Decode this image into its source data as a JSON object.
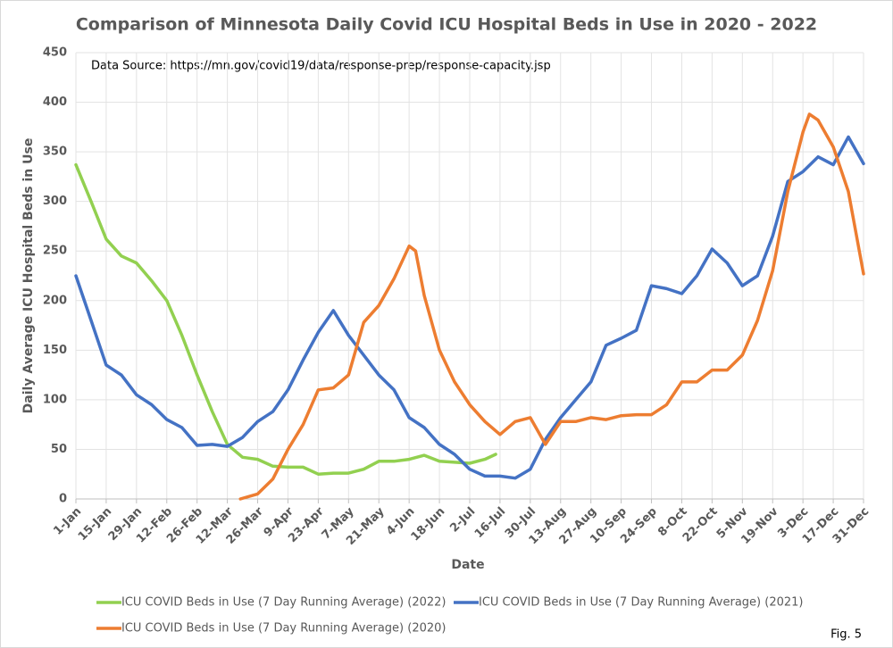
{
  "chart_data": {
    "type": "line",
    "title": "Comparison of Minnesota Daily Covid ICU Hospital Beds in Use in 2020 - 2022",
    "x_label": "Date",
    "y_label": "Daily Average ICU Hospital Beds in Use",
    "annotations": [
      "Data Source: https://mn.gov/covid19/data/response-prep/response-capacity.jsp",
      "Fig. 5"
    ],
    "xlim": [
      0,
      364
    ],
    "ylim": [
      0,
      450
    ],
    "grid": true,
    "yticks": [
      0,
      50,
      100,
      150,
      200,
      250,
      300,
      350,
      400,
      450
    ],
    "xticks": [
      {
        "value": 0,
        "label": "1-Jan"
      },
      {
        "value": 14,
        "label": "15-Jan"
      },
      {
        "value": 28,
        "label": "29-Jan"
      },
      {
        "value": 42,
        "label": "12-Feb"
      },
      {
        "value": 56,
        "label": "26-Feb"
      },
      {
        "value": 70,
        "label": "12-Mar"
      },
      {
        "value": 84,
        "label": "26-Mar"
      },
      {
        "value": 98,
        "label": "9-Apr"
      },
      {
        "value": 112,
        "label": "23-Apr"
      },
      {
        "value": 126,
        "label": "7-May"
      },
      {
        "value": 140,
        "label": "21-May"
      },
      {
        "value": 154,
        "label": "4-Jun"
      },
      {
        "value": 168,
        "label": "18-Jun"
      },
      {
        "value": 182,
        "label": "2-Jul"
      },
      {
        "value": 196,
        "label": "16-Jul"
      },
      {
        "value": 210,
        "label": "30-Jul"
      },
      {
        "value": 224,
        "label": "13-Aug"
      },
      {
        "value": 238,
        "label": "27-Aug"
      },
      {
        "value": 252,
        "label": "10-Sep"
      },
      {
        "value": 266,
        "label": "24-Sep"
      },
      {
        "value": 280,
        "label": "8-Oct"
      },
      {
        "value": 294,
        "label": "22-Oct"
      },
      {
        "value": 308,
        "label": "5-Nov"
      },
      {
        "value": 322,
        "label": "19-Nov"
      },
      {
        "value": 336,
        "label": "3-Dec"
      },
      {
        "value": 350,
        "label": "17-Dec"
      },
      {
        "value": 364,
        "label": "31-Dec"
      }
    ],
    "series": [
      {
        "name": "ICU COVID Beds in Use (7 Day Running Average) (2022)",
        "color": "#92d050",
        "x": [
          0,
          7,
          14,
          21,
          28,
          35,
          42,
          49,
          56,
          63,
          70,
          77,
          84,
          91,
          98,
          105,
          112,
          119,
          126,
          133,
          140,
          147,
          154,
          161,
          168,
          175,
          182,
          189,
          194
        ],
        "values": [
          337,
          300,
          262,
          245,
          238,
          220,
          200,
          165,
          125,
          88,
          55,
          42,
          40,
          33,
          32,
          32,
          25,
          26,
          26,
          30,
          38,
          38,
          40,
          44,
          38,
          37,
          36,
          40,
          45
        ]
      },
      {
        "name": "ICU COVID Beds in Use (7 Day Running Average) (2021)",
        "color": "#4472c4",
        "x": [
          0,
          7,
          14,
          21,
          28,
          35,
          42,
          49,
          56,
          63,
          70,
          77,
          84,
          91,
          98,
          105,
          112,
          119,
          126,
          133,
          140,
          147,
          154,
          161,
          168,
          175,
          182,
          189,
          196,
          203,
          210,
          217,
          224,
          231,
          238,
          245,
          252,
          259,
          266,
          273,
          280,
          287,
          294,
          301,
          308,
          315,
          322,
          329,
          336,
          343,
          350,
          357,
          364
        ],
        "values": [
          225,
          180,
          135,
          125,
          105,
          95,
          80,
          72,
          54,
          55,
          53,
          62,
          78,
          88,
          110,
          140,
          168,
          190,
          165,
          145,
          125,
          110,
          82,
          72,
          55,
          45,
          30,
          23,
          23,
          21,
          30,
          60,
          82,
          100,
          118,
          155,
          162,
          170,
          215,
          212,
          207,
          225,
          252,
          238,
          215,
          225,
          265,
          320,
          330,
          345,
          337,
          365,
          338
        ]
      },
      {
        "name": "ICU COVID Beds in Use (7 Day Running Average) (2020)",
        "color": "#ed7d31",
        "x": [
          76,
          84,
          91,
          98,
          105,
          112,
          119,
          126,
          133,
          140,
          147,
          154,
          157,
          161,
          168,
          175,
          182,
          189,
          196,
          203,
          210,
          217,
          224,
          231,
          238,
          245,
          252,
          259,
          266,
          273,
          280,
          287,
          294,
          301,
          308,
          315,
          322,
          329,
          336,
          339,
          343,
          350,
          357,
          364
        ],
        "values": [
          0,
          5,
          20,
          50,
          75,
          110,
          112,
          125,
          178,
          195,
          222,
          255,
          250,
          205,
          150,
          118,
          95,
          78,
          65,
          78,
          82,
          55,
          78,
          78,
          82,
          80,
          84,
          85,
          85,
          95,
          118,
          118,
          130,
          130,
          145,
          180,
          230,
          310,
          370,
          388,
          382,
          355,
          310,
          227
        ]
      }
    ]
  }
}
